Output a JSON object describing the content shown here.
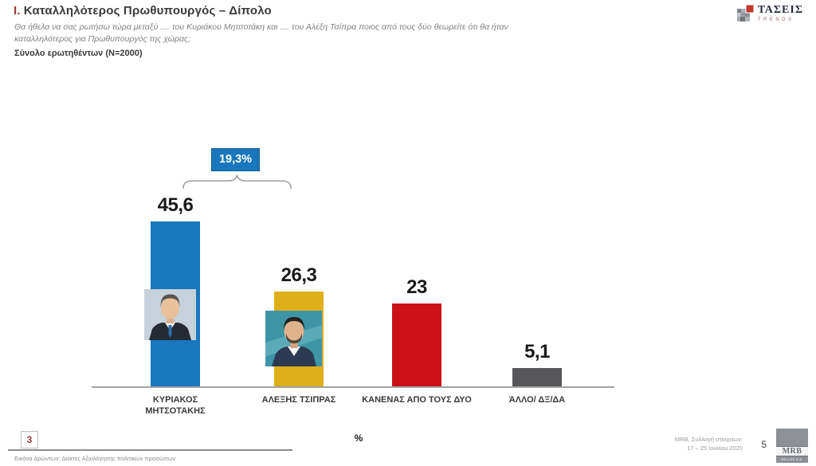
{
  "slide": {
    "title_prefix": "Ι.",
    "title": "Καταλληλότερος Πρωθυπουργός – Δίπολο",
    "subtitle_line1": "Θα ήθελα να σας ρωτήσω τώρα μεταξύ .... του Κυριάκου Μητσοτάκη και .... του  Αλέξη Τσίπρα ποιος από τους δύο θεωρείτε ότι θα ήταν",
    "subtitle_line2": "καταλληλότερος για Πρωθυπουργός της χώρας;",
    "sample_note": "Σύνολο ερωτηθέντων (Ν=2000)"
  },
  "brand": {
    "taseis_name": "ΤΑΣΕΙΣ",
    "taseis_sub": "TRENDS",
    "taseis_icon": "mosaic-grid-with-red-square-icon",
    "mrb_name": "MRB",
    "mrb_sub": "HELLAS S.A."
  },
  "chart_data": {
    "type": "bar",
    "title": "Καταλληλότερος Πρωθυπουργός – Δίπολο",
    "categories": [
      "ΚΥΡΙΑΚΟΣ ΜΗΤΣΟΤΑΚΗΣ",
      "ΑΛΕΞΗΣ ΤΣΙΠΡΑΣ",
      "ΚΑΝΕΝΑΣ ΑΠΟ ΤΟΥΣ ΔΥΟ",
      "ΆΛΛΟ/ ΔΞ/ΔΑ"
    ],
    "values": [
      45.6,
      26.3,
      23,
      5.1
    ],
    "value_labels": [
      "45,6",
      "26,3",
      "23",
      "5,1"
    ],
    "bar_colors": [
      "#1877bd",
      "#dfaf1a",
      "#cb1117",
      "#57575a"
    ],
    "bar_photos": [
      "mitsotakis-portrait",
      "tsipras-portrait",
      null,
      null
    ],
    "annotation": {
      "text": "19,3%",
      "color": "#1877bd",
      "spans_categories": [
        "ΚΥΡΙΑΚΟΣ ΜΗΤΣΟΤΑΚΗΣ",
        "ΑΛΕΞΗΣ ΤΣΙΠΡΑΣ"
      ]
    },
    "xlabel": "%",
    "ylabel": "",
    "ylim": [
      0,
      50
    ],
    "grid": false,
    "legend": false
  },
  "footer": {
    "slide_number_box": "3",
    "footnote": "Εικόνα Δρώντων: Δείκτες Αξιολόγησης πολιτικών προσώπων",
    "axis_unit": "%",
    "source_line1": "MRB, Συλλογή στοιχείων:",
    "source_line2": "17 – 25 Ιουνίου 2020",
    "page_number": "5"
  }
}
